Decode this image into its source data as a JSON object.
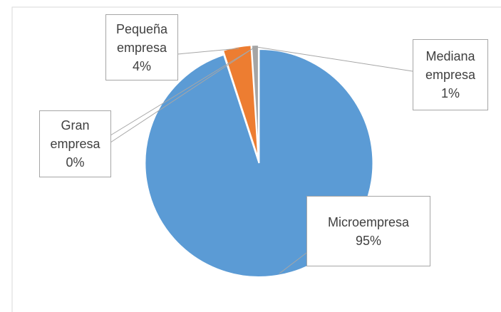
{
  "chart_data": {
    "type": "pie",
    "categories": [
      "Microempresa",
      "Pequeña empresa",
      "Mediana empresa",
      "Gran empresa"
    ],
    "values": [
      95,
      4,
      1,
      0
    ],
    "value_labels": [
      "95%",
      "4%",
      "1%",
      "0%"
    ],
    "colors": [
      "#5b9bd5",
      "#ed7d31",
      "#a5a5a5",
      "#ffc000"
    ]
  }
}
